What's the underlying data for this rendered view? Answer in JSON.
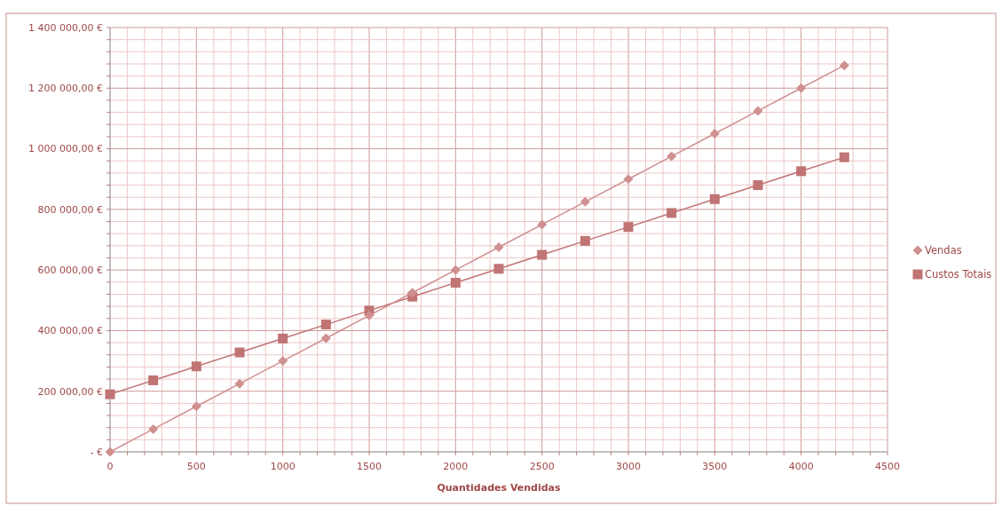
{
  "chart_data": {
    "type": "line",
    "xlabel": "Quantidades Vendidas",
    "x": [
      0,
      250,
      500,
      750,
      1000,
      1250,
      1500,
      1750,
      2000,
      2250,
      2500,
      2750,
      3000,
      3250,
      3500,
      3750,
      4000,
      4250
    ],
    "series": [
      {
        "name": "Vendas",
        "color": "#d09090",
        "marker": "diamond",
        "values": [
          0,
          75000,
          150000,
          225000,
          300000,
          375000,
          450000,
          525000,
          600000,
          675000,
          750000,
          825000,
          900000,
          975000,
          1050000,
          1125000,
          1200000,
          1275000
        ]
      },
      {
        "name": "Custos Totais",
        "color": "#c07474",
        "marker": "square",
        "values": [
          190000,
          236000,
          282000,
          328000,
          374000,
          420000,
          466000,
          512000,
          558000,
          604000,
          650000,
          696000,
          742000,
          788000,
          834000,
          880000,
          926000,
          972000
        ]
      }
    ],
    "xlim": [
      0,
      4500
    ],
    "xticks": [
      0,
      {
        "value": 100,
        "label": null
      },
      {
        "value": 200,
        "label": null
      },
      {
        "value": 300,
        "label": null
      },
      {
        "value": 400,
        "label": null
      },
      500,
      {
        "value": 600,
        "label": null
      },
      {
        "value": 700,
        "label": null
      },
      {
        "value": 800,
        "label": null
      },
      {
        "value": 900,
        "label": null
      },
      1000,
      {
        "value": 1100,
        "label": null
      },
      {
        "value": 1200,
        "label": null
      },
      {
        "value": 1300,
        "label": null
      },
      {
        "value": 1400,
        "label": null
      },
      1500,
      {
        "value": 1600,
        "label": null
      },
      {
        "value": 1700,
        "label": null
      },
      {
        "value": 1800,
        "label": null
      },
      {
        "value": 1900,
        "label": null
      },
      2000,
      {
        "value": 2100,
        "label": null
      },
      {
        "value": 2200,
        "label": null
      },
      {
        "value": 2300,
        "label": null
      },
      {
        "value": 2400,
        "label": null
      },
      2500,
      {
        "value": 2600,
        "label": null
      },
      {
        "value": 2700,
        "label": null
      },
      {
        "value": 2800,
        "label": null
      },
      {
        "value": 2900,
        "label": null
      },
      3000,
      {
        "value": 3100,
        "label": null
      },
      {
        "value": 3200,
        "label": null
      },
      {
        "value": 3300,
        "label": null
      },
      {
        "value": 3400,
        "label": null
      },
      3500,
      {
        "value": 3600,
        "label": null
      },
      {
        "value": 3700,
        "label": null
      },
      {
        "value": 3800,
        "label": null
      },
      {
        "value": 3900,
        "label": null
      },
      4000,
      {
        "value": 4100,
        "label": null
      },
      {
        "value": 4200,
        "label": null
      },
      {
        "value": 4300,
        "label": null
      },
      {
        "value": 4400,
        "label": null
      },
      4500
    ],
    "ylim": [
      0,
      1400000
    ],
    "yticks": [
      {
        "value": 0,
        "label": "-  €"
      },
      {
        "value": 40000,
        "label": null
      },
      {
        "value": 80000,
        "label": null
      },
      {
        "value": 120000,
        "label": null
      },
      {
        "value": 160000,
        "label": null
      },
      {
        "value": 200000,
        "label": "200 000,00 €"
      },
      {
        "value": 240000,
        "label": null
      },
      {
        "value": 280000,
        "label": null
      },
      {
        "value": 320000,
        "label": null
      },
      {
        "value": 360000,
        "label": null
      },
      {
        "value": 400000,
        "label": "400 000,00 €"
      },
      {
        "value": 440000,
        "label": null
      },
      {
        "value": 480000,
        "label": null
      },
      {
        "value": 520000,
        "label": null
      },
      {
        "value": 560000,
        "label": null
      },
      {
        "value": 600000,
        "label": "600 000,00 €"
      },
      {
        "value": 640000,
        "label": null
      },
      {
        "value": 680000,
        "label": null
      },
      {
        "value": 720000,
        "label": null
      },
      {
        "value": 760000,
        "label": null
      },
      {
        "value": 800000,
        "label": "800 000,00 €"
      },
      {
        "value": 840000,
        "label": null
      },
      {
        "value": 880000,
        "label": null
      },
      {
        "value": 920000,
        "label": null
      },
      {
        "value": 960000,
        "label": null
      },
      {
        "value": 1000000,
        "label": "1 000 000,00 €"
      },
      {
        "value": 1040000,
        "label": null
      },
      {
        "value": 1080000,
        "label": null
      },
      {
        "value": 1120000,
        "label": null
      },
      {
        "value": 1160000,
        "label": null
      },
      {
        "value": 1200000,
        "label": "1 200 000,00 €"
      },
      {
        "value": 1240000,
        "label": null
      },
      {
        "value": 1280000,
        "label": null
      },
      {
        "value": 1320000,
        "label": null
      },
      {
        "value": 1360000,
        "label": null
      },
      {
        "value": 1400000,
        "label": "1 400 000,00 €"
      }
    ],
    "grid": true,
    "legend": "right",
    "line_style": "solid"
  }
}
